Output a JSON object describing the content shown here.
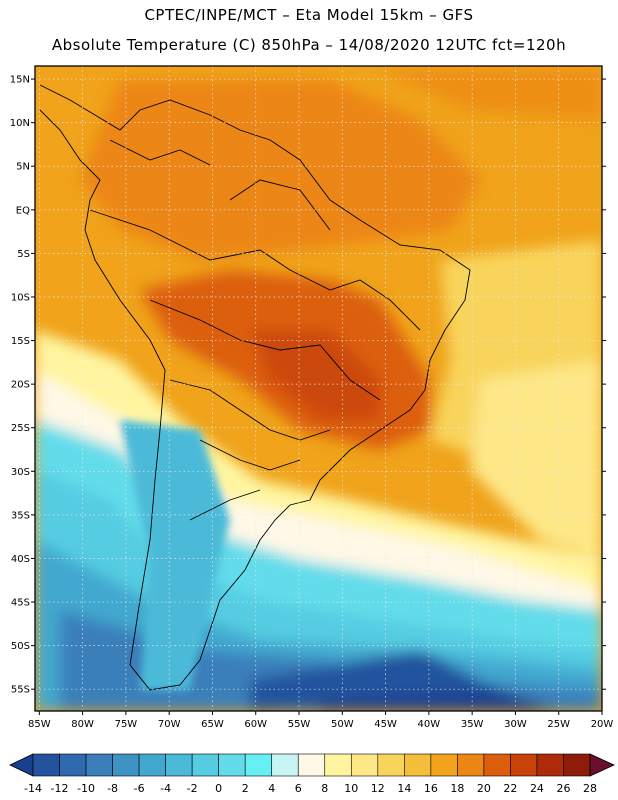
{
  "header": {
    "line1": "CPTEC/INPE/MCT –  Eta Model 15km – GFS",
    "line2": "Absolute Temperature (C) 850hPa – 14/08/2020 12UTC fct=120h"
  },
  "map": {
    "region": "South America",
    "lat_labels": [
      "15N",
      "10N",
      "5N",
      "EQ",
      "5S",
      "10S",
      "15S",
      "20S",
      "25S",
      "30S",
      "35S",
      "40S",
      "45S",
      "50S",
      "55S"
    ],
    "lat_values": [
      15,
      10,
      5,
      0,
      -5,
      -10,
      -15,
      -20,
      -25,
      -30,
      -35,
      -40,
      -45,
      -50,
      -55
    ],
    "lon_labels": [
      "85W",
      "80W",
      "75W",
      "70W",
      "65W",
      "60W",
      "55W",
      "50W",
      "45W",
      "40W",
      "35W",
      "30W",
      "25W",
      "20W"
    ],
    "lon_values": [
      -85,
      -80,
      -75,
      -70,
      -65,
      -60,
      -55,
      -50,
      -45,
      -40,
      -35,
      -30,
      -25,
      -20
    ],
    "lon_range": [
      -85.5,
      -20
    ],
    "lat_range": [
      -57.5,
      16.5
    ]
  },
  "colorbar": {
    "labels": [
      "-14",
      "-12",
      "-10",
      "-8",
      "-6",
      "-4",
      "-2",
      "0",
      "2",
      "4",
      "6",
      "8",
      "10",
      "12",
      "14",
      "16",
      "18",
      "20",
      "22",
      "24",
      "26",
      "28"
    ],
    "colors": [
      "#1a3f8f",
      "#24539e",
      "#2f6aad",
      "#3a7fba",
      "#3f93c4",
      "#43a8cf",
      "#4bbad8",
      "#55cce2",
      "#62dcea",
      "#66f0f4",
      "#c8f4f4",
      "#fff8e6",
      "#fff5a0",
      "#fde787",
      "#f8d45c",
      "#f4be3a",
      "#f0a31b",
      "#ec8614",
      "#dc5e0c",
      "#c8420a",
      "#ad2b08",
      "#8e1c08",
      "#7a1a1a",
      "#6a0f2c"
    ],
    "min": -14,
    "max": 28
  }
}
